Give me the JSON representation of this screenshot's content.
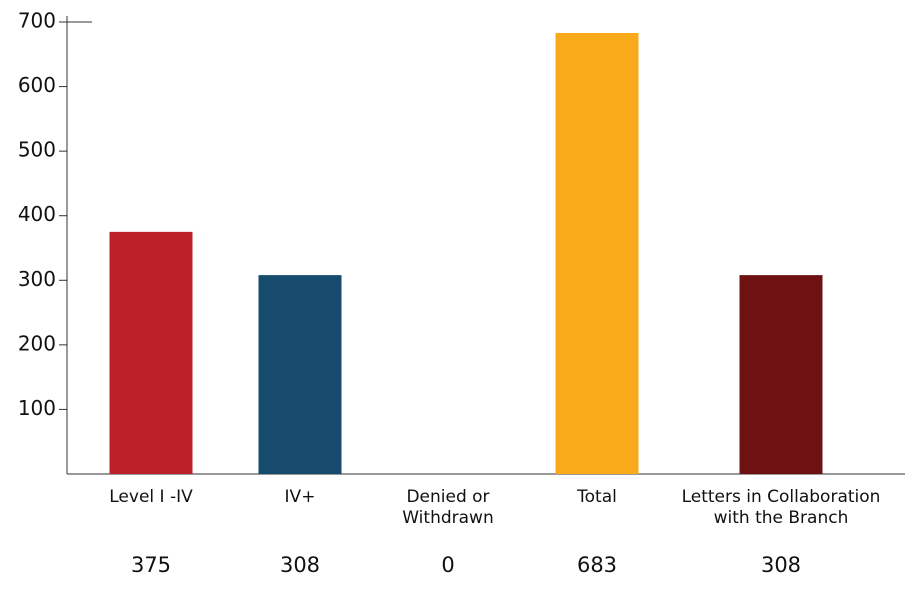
{
  "chart_data": {
    "type": "bar",
    "categories": [
      [
        "Level I -IV"
      ],
      [
        "IV+"
      ],
      [
        "Denied or",
        "Withdrawn"
      ],
      [
        "Total"
      ],
      [
        "Letters in Collaboration",
        "with the Branch"
      ]
    ],
    "values": [
      375,
      308,
      0,
      683,
      308
    ],
    "colors": [
      "#be2029",
      "#164b6e",
      "#888888",
      "#f9aa1b",
      "#6e1113"
    ],
    "ylim": [
      0,
      700
    ],
    "yticks": [
      100,
      200,
      300,
      400,
      500,
      600,
      700
    ]
  }
}
